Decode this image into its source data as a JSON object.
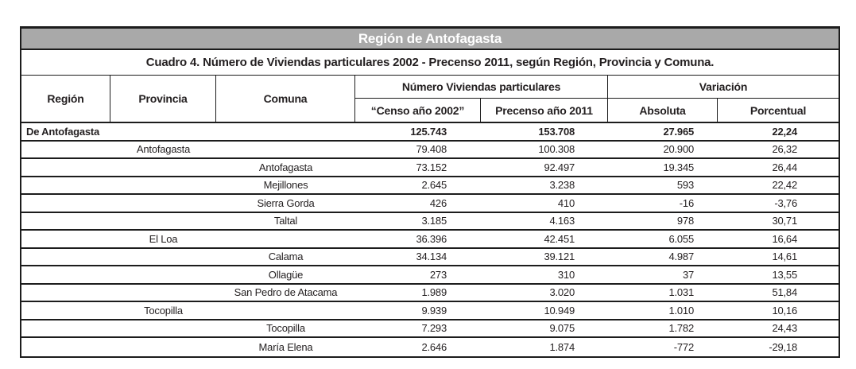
{
  "band": {
    "title": "Región de Antofagasta"
  },
  "title": {
    "text": "Cuadro 4. Número de Viviendas particulares 2002 - Precenso 2011, según Región, Provincia y Comuna."
  },
  "columns": {
    "region": "Región",
    "provincia": "Provincia",
    "comuna": "Comuna",
    "viviendas_group": "Número Viviendas particulares",
    "censo": "“Censo año 2002”",
    "precenso": "Precenso año 2011",
    "variacion_group": "Variación",
    "absoluta": "Absoluta",
    "porcentual": "Porcentual"
  },
  "rows": [
    {
      "level": "region",
      "label": "De Antofagasta",
      "censo": "125.743",
      "precenso": "153.708",
      "absoluta": "27.965",
      "porcentual": "22,24"
    },
    {
      "level": "provincia",
      "label": "Antofagasta",
      "censo": "79.408",
      "precenso": "100.308",
      "absoluta": "20.900",
      "porcentual": "26,32"
    },
    {
      "level": "comuna",
      "label": "Antofagasta",
      "censo": "73.152",
      "precenso": "92.497",
      "absoluta": "19.345",
      "porcentual": "26,44"
    },
    {
      "level": "comuna",
      "label": "Mejillones",
      "censo": "2.645",
      "precenso": "3.238",
      "absoluta": "593",
      "porcentual": "22,42"
    },
    {
      "level": "comuna",
      "label": "Sierra Gorda",
      "censo": "426",
      "precenso": "410",
      "absoluta": "-16",
      "porcentual": "-3,76"
    },
    {
      "level": "comuna",
      "label": "Taltal",
      "censo": "3.185",
      "precenso": "4.163",
      "absoluta": "978",
      "porcentual": "30,71"
    },
    {
      "level": "provincia",
      "label": "El Loa",
      "censo": "36.396",
      "precenso": "42.451",
      "absoluta": "6.055",
      "porcentual": "16,64"
    },
    {
      "level": "comuna",
      "label": "Calama",
      "censo": "34.134",
      "precenso": "39.121",
      "absoluta": "4.987",
      "porcentual": "14,61"
    },
    {
      "level": "comuna",
      "label": "Ollagüe",
      "censo": "273",
      "precenso": "310",
      "absoluta": "37",
      "porcentual": "13,55"
    },
    {
      "level": "comuna",
      "label": "San Pedro de Atacama",
      "censo": "1.989",
      "precenso": "3.020",
      "absoluta": "1.031",
      "porcentual": "51,84"
    },
    {
      "level": "provincia",
      "label": "Tocopilla",
      "censo": "9.939",
      "precenso": "10.949",
      "absoluta": "1.010",
      "porcentual": "10,16"
    },
    {
      "level": "comuna",
      "label": "Tocopilla",
      "censo": "7.293",
      "precenso": "9.075",
      "absoluta": "1.782",
      "porcentual": "24,43"
    },
    {
      "level": "comuna",
      "label": "María Elena",
      "censo": "2.646",
      "precenso": "1.874",
      "absoluta": "-772",
      "porcentual": "-29,18"
    }
  ],
  "colors": {
    "band_bg": "#a9a9a9",
    "band_text": "#ffffff",
    "border": "#1c1c1c",
    "text": "#231f20",
    "background": "#ffffff"
  }
}
